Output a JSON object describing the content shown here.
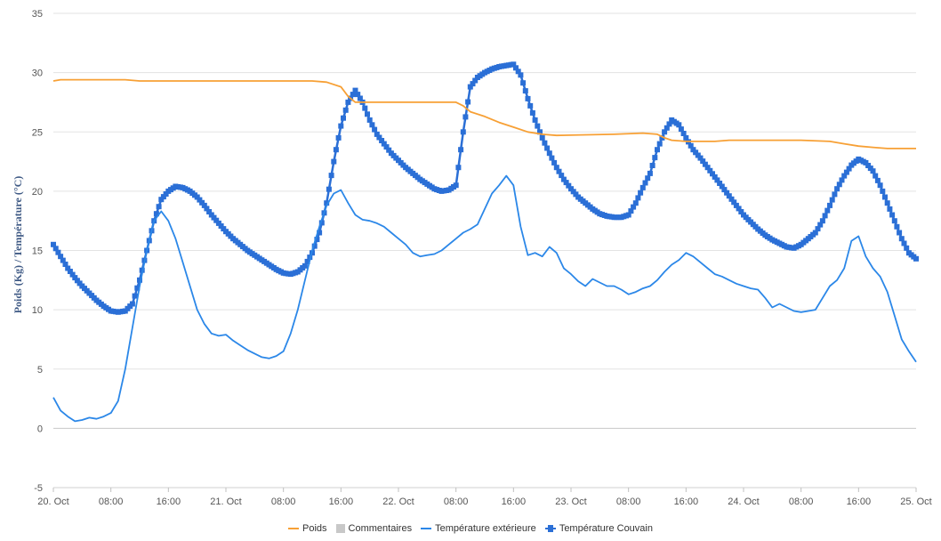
{
  "chart_data": {
    "type": "line",
    "title": "",
    "ylabel": "Poids (Kg) / Température (°C)",
    "xlabel": "",
    "ylim": [
      -5,
      35
    ],
    "yticks": [
      -5,
      0,
      5,
      10,
      15,
      20,
      25,
      30,
      35
    ],
    "x_range_hours": [
      0,
      120
    ],
    "x_ticks": [
      {
        "hour": 0,
        "label": "20. Oct"
      },
      {
        "hour": 8,
        "label": "08:00"
      },
      {
        "hour": 16,
        "label": "16:00"
      },
      {
        "hour": 24,
        "label": "21. Oct"
      },
      {
        "hour": 32,
        "label": "08:00"
      },
      {
        "hour": 40,
        "label": "16:00"
      },
      {
        "hour": 48,
        "label": "22. Oct"
      },
      {
        "hour": 56,
        "label": "08:00"
      },
      {
        "hour": 64,
        "label": "16:00"
      },
      {
        "hour": 72,
        "label": "23. Oct"
      },
      {
        "hour": 80,
        "label": "08:00"
      },
      {
        "hour": 88,
        "label": "16:00"
      },
      {
        "hour": 96,
        "label": "24. Oct"
      },
      {
        "hour": 104,
        "label": "08:00"
      },
      {
        "hour": 112,
        "label": "16:00"
      },
      {
        "hour": 120,
        "label": "25. Oct"
      }
    ],
    "grid": true,
    "legend_position": "bottom",
    "series": [
      {
        "name": "Poids",
        "color": "#f7a035",
        "style": "line",
        "points": [
          [
            0,
            29.3
          ],
          [
            1,
            29.4
          ],
          [
            10,
            29.4
          ],
          [
            12,
            29.3
          ],
          [
            36,
            29.3
          ],
          [
            38,
            29.2
          ],
          [
            40,
            28.8
          ],
          [
            41,
            28.0
          ],
          [
            42,
            27.5
          ],
          [
            56,
            27.5
          ],
          [
            57,
            27.2
          ],
          [
            58,
            26.7
          ],
          [
            60,
            26.3
          ],
          [
            62,
            25.8
          ],
          [
            64,
            25.4
          ],
          [
            66,
            25.0
          ],
          [
            68,
            24.8
          ],
          [
            70,
            24.7
          ],
          [
            78,
            24.8
          ],
          [
            82,
            24.9
          ],
          [
            84,
            24.8
          ],
          [
            85,
            24.5
          ],
          [
            86,
            24.3
          ],
          [
            88,
            24.2
          ],
          [
            92,
            24.2
          ],
          [
            94,
            24.3
          ],
          [
            104,
            24.3
          ],
          [
            108,
            24.2
          ],
          [
            110,
            24.0
          ],
          [
            112,
            23.8
          ],
          [
            114,
            23.7
          ],
          [
            116,
            23.6
          ],
          [
            120,
            23.6
          ]
        ]
      },
      {
        "name": "Commentaires",
        "color": "#c8c8c8",
        "style": "box",
        "points": []
      },
      {
        "name": "Température extérieure",
        "color": "#2b87e8",
        "style": "line",
        "points": [
          [
            0,
            2.6
          ],
          [
            1,
            1.5
          ],
          [
            2,
            1.0
          ],
          [
            3,
            0.6
          ],
          [
            4,
            0.7
          ],
          [
            5,
            0.9
          ],
          [
            6,
            0.8
          ],
          [
            7,
            1.0
          ],
          [
            8,
            1.3
          ],
          [
            9,
            2.3
          ],
          [
            10,
            5.0
          ],
          [
            11,
            8.5
          ],
          [
            12,
            12.0
          ],
          [
            13,
            15.0
          ],
          [
            14,
            17.5
          ],
          [
            15,
            18.3
          ],
          [
            16,
            17.5
          ],
          [
            17,
            16.0
          ],
          [
            18,
            14.0
          ],
          [
            19,
            12.0
          ],
          [
            20,
            10.0
          ],
          [
            21,
            8.8
          ],
          [
            22,
            8.0
          ],
          [
            23,
            7.8
          ],
          [
            24,
            7.9
          ],
          [
            25,
            7.4
          ],
          [
            26,
            7.0
          ],
          [
            27,
            6.6
          ],
          [
            28,
            6.3
          ],
          [
            29,
            6.0
          ],
          [
            30,
            5.9
          ],
          [
            31,
            6.1
          ],
          [
            32,
            6.5
          ],
          [
            33,
            8.0
          ],
          [
            34,
            10.0
          ],
          [
            35,
            12.5
          ],
          [
            36,
            15.0
          ],
          [
            37,
            17.0
          ],
          [
            38,
            18.8
          ],
          [
            39,
            19.8
          ],
          [
            40,
            20.1
          ],
          [
            41,
            19.0
          ],
          [
            42,
            18.0
          ],
          [
            43,
            17.6
          ],
          [
            44,
            17.5
          ],
          [
            45,
            17.3
          ],
          [
            46,
            17.0
          ],
          [
            47,
            16.5
          ],
          [
            48,
            16.0
          ],
          [
            49,
            15.5
          ],
          [
            50,
            14.8
          ],
          [
            51,
            14.5
          ],
          [
            52,
            14.6
          ],
          [
            53,
            14.7
          ],
          [
            54,
            15.0
          ],
          [
            55,
            15.5
          ],
          [
            56,
            16.0
          ],
          [
            57,
            16.5
          ],
          [
            58,
            16.8
          ],
          [
            59,
            17.2
          ],
          [
            60,
            18.5
          ],
          [
            61,
            19.8
          ],
          [
            62,
            20.5
          ],
          [
            63,
            21.3
          ],
          [
            64,
            20.5
          ],
          [
            65,
            17.0
          ],
          [
            66,
            14.6
          ],
          [
            67,
            14.8
          ],
          [
            68,
            14.5
          ],
          [
            69,
            15.3
          ],
          [
            70,
            14.8
          ],
          [
            71,
            13.5
          ],
          [
            72,
            13.0
          ],
          [
            73,
            12.4
          ],
          [
            74,
            12.0
          ],
          [
            75,
            12.6
          ],
          [
            76,
            12.3
          ],
          [
            77,
            12.0
          ],
          [
            78,
            12.0
          ],
          [
            79,
            11.7
          ],
          [
            80,
            11.3
          ],
          [
            81,
            11.5
          ],
          [
            82,
            11.8
          ],
          [
            83,
            12.0
          ],
          [
            84,
            12.5
          ],
          [
            85,
            13.2
          ],
          [
            86,
            13.8
          ],
          [
            87,
            14.2
          ],
          [
            88,
            14.8
          ],
          [
            89,
            14.5
          ],
          [
            90,
            14.0
          ],
          [
            91,
            13.5
          ],
          [
            92,
            13.0
          ],
          [
            93,
            12.8
          ],
          [
            94,
            12.5
          ],
          [
            95,
            12.2
          ],
          [
            96,
            12.0
          ],
          [
            97,
            11.8
          ],
          [
            98,
            11.7
          ],
          [
            99,
            11.0
          ],
          [
            100,
            10.2
          ],
          [
            101,
            10.5
          ],
          [
            102,
            10.2
          ],
          [
            103,
            9.9
          ],
          [
            104,
            9.8
          ],
          [
            105,
            9.9
          ],
          [
            106,
            10.0
          ],
          [
            107,
            11.0
          ],
          [
            108,
            12.0
          ],
          [
            109,
            12.5
          ],
          [
            110,
            13.5
          ],
          [
            111,
            15.8
          ],
          [
            112,
            16.2
          ],
          [
            113,
            14.5
          ],
          [
            114,
            13.5
          ],
          [
            115,
            12.8
          ],
          [
            116,
            11.5
          ],
          [
            117,
            9.5
          ],
          [
            118,
            7.5
          ],
          [
            119,
            6.5
          ],
          [
            120,
            5.6
          ]
        ]
      },
      {
        "name": "Température Couvain",
        "color": "#2b6fd6",
        "style": "marker-line",
        "points": [
          [
            0,
            15.5
          ],
          [
            1,
            14.5
          ],
          [
            2,
            13.5
          ],
          [
            3,
            12.7
          ],
          [
            4,
            12.0
          ],
          [
            5,
            11.4
          ],
          [
            6,
            10.8
          ],
          [
            7,
            10.3
          ],
          [
            8,
            9.9
          ],
          [
            9,
            9.8
          ],
          [
            10,
            9.9
          ],
          [
            11,
            10.5
          ],
          [
            12,
            12.5
          ],
          [
            13,
            15.0
          ],
          [
            14,
            17.5
          ],
          [
            15,
            19.3
          ],
          [
            16,
            20.0
          ],
          [
            17,
            20.4
          ],
          [
            18,
            20.3
          ],
          [
            19,
            20.0
          ],
          [
            20,
            19.5
          ],
          [
            21,
            18.8
          ],
          [
            22,
            18.0
          ],
          [
            23,
            17.3
          ],
          [
            24,
            16.6
          ],
          [
            25,
            16.0
          ],
          [
            26,
            15.5
          ],
          [
            27,
            15.0
          ],
          [
            28,
            14.6
          ],
          [
            29,
            14.2
          ],
          [
            30,
            13.8
          ],
          [
            31,
            13.4
          ],
          [
            32,
            13.1
          ],
          [
            33,
            13.0
          ],
          [
            34,
            13.2
          ],
          [
            35,
            13.7
          ],
          [
            36,
            14.8
          ],
          [
            37,
            16.5
          ],
          [
            38,
            19.0
          ],
          [
            39,
            22.5
          ],
          [
            40,
            25.5
          ],
          [
            41,
            27.5
          ],
          [
            42,
            28.5
          ],
          [
            43,
            27.5
          ],
          [
            44,
            26.0
          ],
          [
            45,
            24.8
          ],
          [
            46,
            24.0
          ],
          [
            47,
            23.2
          ],
          [
            48,
            22.6
          ],
          [
            49,
            22.0
          ],
          [
            50,
            21.5
          ],
          [
            51,
            21.0
          ],
          [
            52,
            20.6
          ],
          [
            53,
            20.2
          ],
          [
            54,
            20.0
          ],
          [
            55,
            20.1
          ],
          [
            56,
            20.5
          ],
          [
            57,
            25.0
          ],
          [
            58,
            28.8
          ],
          [
            59,
            29.6
          ],
          [
            60,
            30.0
          ],
          [
            61,
            30.3
          ],
          [
            62,
            30.5
          ],
          [
            63,
            30.6
          ],
          [
            64,
            30.7
          ],
          [
            65,
            29.8
          ],
          [
            66,
            27.8
          ],
          [
            67,
            26.0
          ],
          [
            68,
            24.5
          ],
          [
            69,
            23.2
          ],
          [
            70,
            22.0
          ],
          [
            71,
            21.0
          ],
          [
            72,
            20.2
          ],
          [
            73,
            19.5
          ],
          [
            74,
            19.0
          ],
          [
            75,
            18.5
          ],
          [
            76,
            18.1
          ],
          [
            77,
            17.9
          ],
          [
            78,
            17.8
          ],
          [
            79,
            17.8
          ],
          [
            80,
            18.0
          ],
          [
            81,
            19.0
          ],
          [
            82,
            20.3
          ],
          [
            83,
            21.5
          ],
          [
            84,
            23.5
          ],
          [
            85,
            25.0
          ],
          [
            86,
            26.0
          ],
          [
            87,
            25.6
          ],
          [
            88,
            24.5
          ],
          [
            89,
            23.5
          ],
          [
            90,
            22.8
          ],
          [
            91,
            22.0
          ],
          [
            92,
            21.2
          ],
          [
            93,
            20.4
          ],
          [
            94,
            19.6
          ],
          [
            95,
            18.8
          ],
          [
            96,
            18.0
          ],
          [
            97,
            17.4
          ],
          [
            98,
            16.8
          ],
          [
            99,
            16.3
          ],
          [
            100,
            15.9
          ],
          [
            101,
            15.6
          ],
          [
            102,
            15.3
          ],
          [
            103,
            15.2
          ],
          [
            104,
            15.5
          ],
          [
            105,
            16.0
          ],
          [
            106,
            16.5
          ],
          [
            107,
            17.5
          ],
          [
            108,
            18.8
          ],
          [
            109,
            20.2
          ],
          [
            110,
            21.3
          ],
          [
            111,
            22.2
          ],
          [
            112,
            22.7
          ],
          [
            113,
            22.4
          ],
          [
            114,
            21.7
          ],
          [
            115,
            20.5
          ],
          [
            116,
            19.0
          ],
          [
            117,
            17.5
          ],
          [
            118,
            16.0
          ],
          [
            119,
            14.8
          ],
          [
            120,
            14.3
          ]
        ]
      }
    ]
  }
}
